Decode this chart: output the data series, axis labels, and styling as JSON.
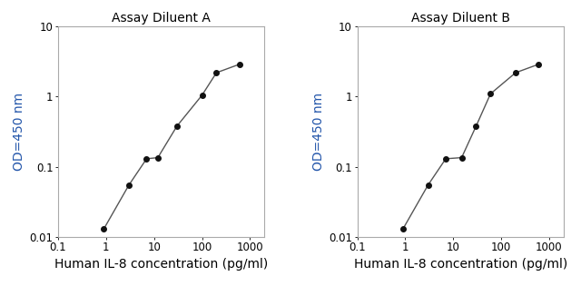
{
  "title_A": "Assay Diluent A",
  "title_B": "Assay Diluent B",
  "xlabel": "Human IL-8 concentration (pg/ml)",
  "ylabel": "OD=450 nm",
  "xlabel_color": "#000000",
  "ylabel_color": "#2255aa",
  "x_A": [
    0.9,
    3.0,
    7.0,
    12.0,
    30.0,
    100.0,
    200.0,
    600.0
  ],
  "y_A": [
    0.013,
    0.055,
    0.13,
    0.135,
    0.38,
    1.05,
    2.2,
    2.9
  ],
  "x_B": [
    0.9,
    3.0,
    7.0,
    15.0,
    30.0,
    60.0,
    200.0,
    600.0
  ],
  "y_B": [
    0.013,
    0.055,
    0.13,
    0.135,
    0.38,
    1.1,
    2.2,
    2.9
  ],
  "xlim": [
    0.1,
    2000
  ],
  "ylim": [
    0.01,
    10
  ],
  "line_color": "#555555",
  "marker_color": "#111111",
  "background_color": "#ffffff",
  "title_fontsize": 10,
  "label_fontsize": 10,
  "tick_fontsize": 8.5,
  "x_ticks": [
    0.1,
    1,
    10,
    100,
    1000
  ],
  "y_ticks": [
    0.01,
    0.1,
    1,
    10
  ]
}
